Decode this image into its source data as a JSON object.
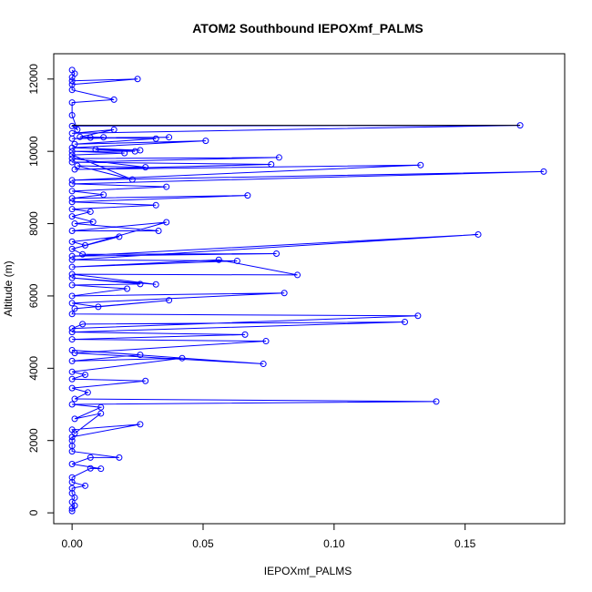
{
  "chart_data": {
    "type": "line",
    "title": "ATOM2 Southbound IEPOXmf_PALMS",
    "xlabel": "IEPOXmf_PALMS",
    "ylabel": "Altitude (m)",
    "xlim": [
      -0.007,
      0.188
    ],
    "ylim": [
      -300,
      12700
    ],
    "xticks": [
      0.0,
      0.05,
      0.1,
      0.15
    ],
    "xtick_labels": [
      "0.00",
      "0.05",
      "0.10",
      "0.15"
    ],
    "yticks": [
      0,
      2000,
      4000,
      6000,
      8000,
      10000,
      12000
    ],
    "ytick_labels": [
      "0",
      "2000",
      "4000",
      "6000",
      "8000",
      "10000",
      "12000"
    ],
    "grid": false,
    "markers": "open-circle",
    "series": [
      {
        "color": "#0000ff",
        "points": [
          [
            0.0,
            50
          ],
          [
            0.0,
            120
          ],
          [
            0.001,
            200
          ],
          [
            0.0,
            300
          ],
          [
            0.001,
            420
          ],
          [
            0.0,
            540
          ],
          [
            0.0,
            680
          ],
          [
            0.005,
            750
          ],
          [
            0.0,
            850
          ],
          [
            0.0,
            980
          ],
          [
            0.007,
            1230
          ],
          [
            0.011,
            1220
          ],
          [
            0.0,
            1350
          ],
          [
            0.007,
            1530
          ],
          [
            0.018,
            1530
          ],
          [
            0.0,
            1700
          ],
          [
            0.0,
            1850
          ],
          [
            0.0,
            2000
          ],
          [
            0.0,
            2100
          ],
          [
            0.026,
            2450
          ],
          [
            0.0,
            2300
          ],
          [
            0.001,
            2200
          ],
          [
            0.011,
            2750
          ],
          [
            0.001,
            2600
          ],
          [
            0.011,
            2920
          ],
          [
            0.0,
            3000
          ],
          [
            0.139,
            3080
          ],
          [
            0.001,
            3150
          ],
          [
            0.006,
            3330
          ],
          [
            0.0,
            3450
          ],
          [
            0.028,
            3650
          ],
          [
            0.0,
            3700
          ],
          [
            0.005,
            3820
          ],
          [
            0.0,
            3900
          ],
          [
            0.042,
            4280
          ],
          [
            0.0,
            4200
          ],
          [
            0.026,
            4370
          ],
          [
            0.0,
            4500
          ],
          [
            0.073,
            4120
          ],
          [
            0.001,
            4420
          ],
          [
            0.074,
            4750
          ],
          [
            0.0,
            4800
          ],
          [
            0.066,
            4930
          ],
          [
            0.0,
            5000
          ],
          [
            0.127,
            5280
          ],
          [
            0.004,
            5220
          ],
          [
            0.0,
            5100
          ],
          [
            0.132,
            5450
          ],
          [
            0.0,
            5500
          ],
          [
            0.001,
            5650
          ],
          [
            0.037,
            5880
          ],
          [
            0.01,
            5700
          ],
          [
            0.0,
            5800
          ],
          [
            0.081,
            6080
          ],
          [
            0.0,
            6000
          ],
          [
            0.021,
            6200
          ],
          [
            0.0,
            6300
          ],
          [
            0.026,
            6330
          ],
          [
            0.0,
            6500
          ],
          [
            0.032,
            6320
          ],
          [
            0.0,
            6600
          ],
          [
            0.086,
            6580
          ],
          [
            0.056,
            7000
          ],
          [
            0.0,
            6800
          ],
          [
            0.063,
            6970
          ],
          [
            0.0,
            7000
          ],
          [
            0.155,
            7700
          ],
          [
            0.0,
            7100
          ],
          [
            0.078,
            7170
          ],
          [
            0.004,
            7150
          ],
          [
            0.0,
            7300
          ],
          [
            0.018,
            7640
          ],
          [
            0.0,
            7500
          ],
          [
            0.005,
            7400
          ],
          [
            0.036,
            8040
          ],
          [
            0.0,
            7800
          ],
          [
            0.033,
            7800
          ],
          [
            0.001,
            8000
          ],
          [
            0.008,
            8050
          ],
          [
            0.0,
            8200
          ],
          [
            0.007,
            8330
          ],
          [
            0.0,
            8400
          ],
          [
            0.032,
            8510
          ],
          [
            0.0,
            8600
          ],
          [
            0.067,
            8780
          ],
          [
            0.0,
            8700
          ],
          [
            0.012,
            8800
          ],
          [
            0.0,
            8900
          ],
          [
            0.036,
            9020
          ],
          [
            0.0,
            9100
          ],
          [
            0.18,
            9440
          ],
          [
            0.0,
            9200
          ],
          [
            0.133,
            9620
          ],
          [
            0.001,
            9500
          ],
          [
            0.076,
            9640
          ],
          [
            0.0,
            9700
          ],
          [
            0.079,
            9830
          ],
          [
            0.0,
            9800
          ],
          [
            0.028,
            9560
          ],
          [
            0.002,
            9600
          ],
          [
            0.023,
            9220
          ],
          [
            0.0,
            9900
          ],
          [
            0.02,
            9950
          ],
          [
            0.0,
            10000
          ],
          [
            0.024,
            10000
          ],
          [
            0.009,
            10050
          ],
          [
            0.026,
            10030
          ],
          [
            0.0,
            10100
          ],
          [
            0.051,
            10290
          ],
          [
            0.001,
            10200
          ],
          [
            0.032,
            10350
          ],
          [
            0.007,
            10380
          ],
          [
            0.037,
            10390
          ],
          [
            0.0,
            10350
          ],
          [
            0.012,
            10390
          ],
          [
            0.003,
            10400
          ],
          [
            0.016,
            10600
          ],
          [
            0.0,
            10500
          ],
          [
            0.171,
            10720
          ],
          [
            0.0,
            10700
          ],
          [
            0.002,
            10600
          ],
          [
            0.0,
            11000
          ],
          [
            0.0,
            11350
          ],
          [
            0.016,
            11430
          ],
          [
            0.0,
            11700
          ],
          [
            0.0,
            11850
          ],
          [
            0.025,
            12000
          ],
          [
            0.0,
            11950
          ],
          [
            0.0,
            12050
          ],
          [
            0.001,
            12150
          ],
          [
            0.0,
            12250
          ]
        ]
      },
      {
        "color": "#000000",
        "points": [
          [
            0.0,
            10720
          ],
          [
            0.171,
            10720
          ]
        ]
      }
    ]
  }
}
